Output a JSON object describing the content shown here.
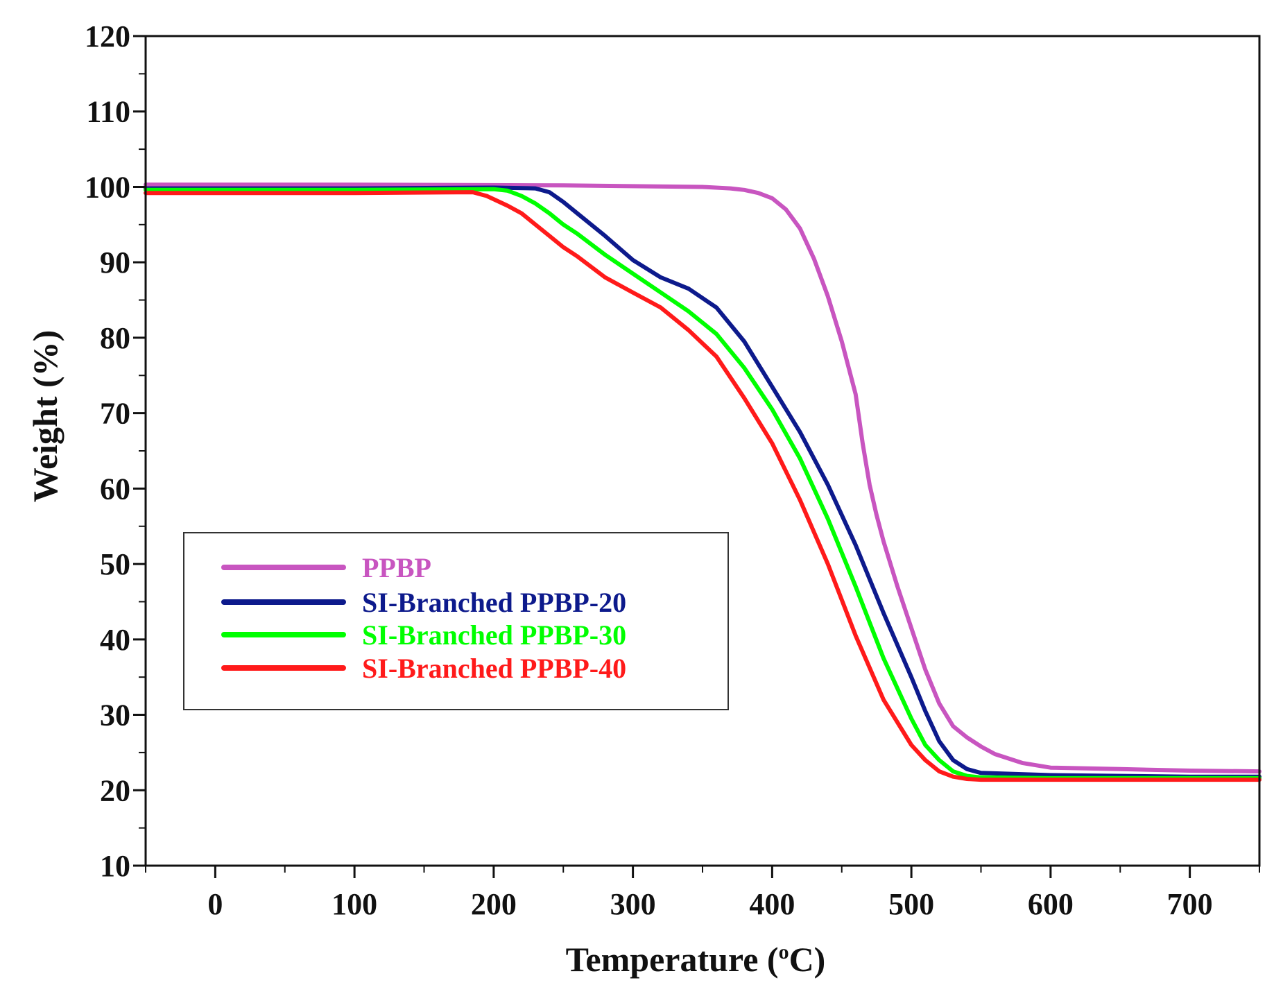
{
  "chart_data": {
    "type": "line",
    "title": "",
    "xlabel": "Temperature (",
    "xlabel_sup": "o",
    "xlabel_suffix": "C)",
    "ylabel": "Weight (%)",
    "xlim": [
      -50,
      750
    ],
    "ylim": [
      10,
      120
    ],
    "xticks": [
      0,
      100,
      200,
      300,
      400,
      500,
      600,
      700
    ],
    "xtick_labels": [
      "0",
      "100",
      "200",
      "300",
      "400",
      "500",
      "600",
      "700"
    ],
    "yticks": [
      10,
      20,
      30,
      40,
      50,
      60,
      70,
      80,
      90,
      100,
      110,
      120
    ],
    "ytick_labels": [
      "10",
      "20",
      "30",
      "40",
      "50",
      "60",
      "70",
      "80",
      "90",
      "100",
      "110",
      "120"
    ],
    "grid": false,
    "legend_position": "center-left",
    "series": [
      {
        "name": "PPBP",
        "color": "#c855c0",
        "x": [
          -50,
          100,
          250,
          350,
          370,
          380,
          390,
          400,
          410,
          420,
          430,
          440,
          450,
          460,
          465,
          470,
          475,
          480,
          490,
          500,
          510,
          520,
          530,
          540,
          550,
          560,
          580,
          600,
          650,
          700,
          750
        ],
        "y": [
          100.3,
          100.3,
          100.2,
          100.0,
          99.8,
          99.6,
          99.2,
          98.5,
          97.0,
          94.5,
          90.5,
          85.5,
          79.5,
          72.5,
          66.0,
          60.5,
          56.5,
          53.0,
          47.0,
          41.5,
          36.0,
          31.5,
          28.5,
          27.0,
          25.8,
          24.8,
          23.6,
          23.0,
          22.8,
          22.6,
          22.5
        ]
      },
      {
        "name": "SI-Branched PPBP-20",
        "color": "#0d1a8c",
        "x": [
          -50,
          100,
          200,
          230,
          240,
          250,
          260,
          280,
          300,
          320,
          340,
          360,
          380,
          400,
          420,
          440,
          460,
          480,
          500,
          510,
          520,
          530,
          540,
          550,
          600,
          700,
          750
        ],
        "y": [
          99.8,
          99.8,
          99.9,
          99.8,
          99.3,
          98.0,
          96.5,
          93.5,
          90.3,
          88.0,
          86.5,
          84.0,
          79.5,
          73.5,
          67.5,
          60.5,
          52.5,
          43.5,
          35.0,
          30.5,
          26.5,
          24.0,
          22.8,
          22.3,
          22.0,
          21.8,
          21.8
        ]
      },
      {
        "name": "SI-Branched PPBP-30",
        "color": "#00ff00",
        "x": [
          -50,
          100,
          200,
          210,
          220,
          230,
          240,
          250,
          260,
          280,
          300,
          320,
          340,
          360,
          380,
          400,
          420,
          440,
          460,
          480,
          500,
          510,
          520,
          530,
          540,
          550,
          600,
          700,
          750
        ],
        "y": [
          99.6,
          99.6,
          99.7,
          99.5,
          98.8,
          97.8,
          96.5,
          95.0,
          93.8,
          91.0,
          88.5,
          86.0,
          83.5,
          80.5,
          76.0,
          70.5,
          64.0,
          56.0,
          47.0,
          37.5,
          29.5,
          26.0,
          24.0,
          22.5,
          21.9,
          21.7,
          21.6,
          21.6,
          21.6
        ]
      },
      {
        "name": "SI-Branched PPBP-40",
        "color": "#ff1a1a",
        "x": [
          -50,
          100,
          185,
          195,
          210,
          220,
          230,
          240,
          250,
          260,
          280,
          300,
          320,
          340,
          360,
          380,
          400,
          420,
          440,
          460,
          480,
          500,
          510,
          520,
          530,
          540,
          550,
          600,
          700,
          750
        ],
        "y": [
          99.2,
          99.2,
          99.3,
          98.8,
          97.5,
          96.5,
          95.0,
          93.5,
          92.0,
          90.8,
          88.0,
          86.0,
          84.0,
          81.0,
          77.5,
          72.0,
          66.0,
          58.5,
          50.0,
          40.5,
          32.0,
          26.0,
          24.0,
          22.5,
          21.8,
          21.5,
          21.4,
          21.4,
          21.4,
          21.4
        ]
      }
    ]
  }
}
